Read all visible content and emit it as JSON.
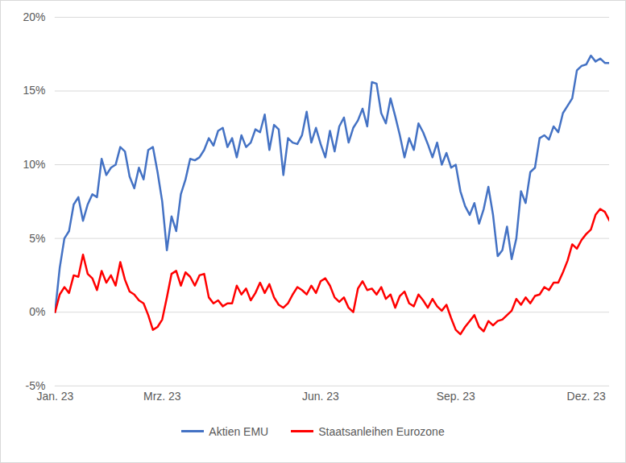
{
  "chart_data": {
    "type": "line",
    "categories": [
      "Jan. 23",
      null,
      null,
      null,
      null,
      null,
      null,
      null,
      null,
      null,
      null,
      null,
      null,
      null,
      null,
      null,
      null,
      null,
      null,
      null,
      null,
      null,
      null,
      "Mrz. 23",
      null,
      null,
      null,
      null,
      null,
      null,
      null,
      null,
      null,
      null,
      null,
      null,
      null,
      null,
      null,
      null,
      null,
      null,
      null,
      null,
      null,
      null,
      null,
      null,
      null,
      null,
      null,
      null,
      null,
      null,
      null,
      null,
      null,
      "Jun. 23",
      null,
      null,
      null,
      null,
      null,
      null,
      null,
      null,
      null,
      null,
      null,
      null,
      null,
      null,
      null,
      null,
      null,
      null,
      null,
      null,
      null,
      null,
      null,
      null,
      null,
      null,
      null,
      null,
      "Sep. 23",
      null,
      null,
      null,
      null,
      null,
      null,
      null,
      null,
      null,
      null,
      null,
      null,
      null,
      null,
      null,
      null,
      null,
      null,
      null,
      null,
      null,
      null,
      null,
      null,
      null,
      null,
      null,
      "Dez. 23",
      null,
      null,
      null,
      null,
      null
    ],
    "series": [
      {
        "name": "Aktien EMU",
        "color": "#4472c4",
        "values": [
          0,
          3,
          5,
          5.5,
          7.3,
          7.8,
          6.2,
          7.3,
          8,
          7.8,
          10.4,
          9.3,
          9.8,
          10,
          11.2,
          10.9,
          9.2,
          8.4,
          9.8,
          9.0,
          11.0,
          11.2,
          9.5,
          7.5,
          4.2,
          6.5,
          5.5,
          8,
          9,
          10.4,
          10.3,
          10.5,
          11,
          11.8,
          11.3,
          12.3,
          12.5,
          11.2,
          11.8,
          10.5,
          12,
          11.2,
          11.5,
          12.4,
          12.2,
          13.4,
          11,
          12.7,
          12.4,
          9.3,
          11.8,
          11.5,
          11.4,
          12,
          13.6,
          11.5,
          12.5,
          11.4,
          10.5,
          12.3,
          10.9,
          12.6,
          13.2,
          11.5,
          12.5,
          13,
          13.8,
          12.6,
          15.6,
          15.5,
          13.5,
          12.8,
          14.5,
          13.3,
          12,
          10.5,
          11.8,
          11,
          12.8,
          12.2,
          11.4,
          10.5,
          11.5,
          10,
          10.8,
          9.8,
          10,
          8.2,
          7.2,
          6.6,
          7.4,
          6,
          7,
          8.5,
          6.6,
          3.8,
          4.2,
          5.8,
          3.6,
          5,
          8.2,
          7.4,
          9.5,
          9.8,
          11.8,
          12,
          11.7,
          12.6,
          12.2,
          13.5,
          14,
          14.5,
          16.4,
          16.7,
          16.8,
          17.4,
          17,
          17.2,
          16.9,
          16.9
        ]
      },
      {
        "name": "Staatsanleihen Eurozone",
        "color": "#ff0000",
        "values": [
          0,
          1.2,
          1.7,
          1.3,
          2.5,
          2.4,
          3.9,
          2.6,
          2.3,
          1.5,
          2.8,
          2,
          2.5,
          1.8,
          3.4,
          2.2,
          1.4,
          1.2,
          0.8,
          0.6,
          -0.2,
          -1.2,
          -1.0,
          -0.5,
          1.0,
          2.6,
          2.8,
          1.8,
          2.7,
          2.4,
          1.8,
          2.5,
          2.6,
          1,
          0.6,
          0.8,
          0.4,
          0.6,
          0.6,
          1.8,
          1.2,
          1.6,
          0.8,
          1.3,
          2,
          1.3,
          1.9,
          1,
          0.5,
          0.3,
          0.6,
          1.2,
          1.7,
          1.5,
          1.2,
          1.8,
          1.3,
          2.1,
          2.3,
          1.8,
          1.0,
          0.7,
          1,
          0.3,
          0,
          1.6,
          2.1,
          1.5,
          1.6,
          1.2,
          1.7,
          0.9,
          1.2,
          0.3,
          1.1,
          1.4,
          0.6,
          0.4,
          1.2,
          0.8,
          0.3,
          0.9,
          0.4,
          0.1,
          0.5,
          -0.4,
          -1.2,
          -1.5,
          -1.0,
          -0.6,
          -0.2,
          -1.0,
          -1.3,
          -0.6,
          -0.9,
          -0.6,
          -0.5,
          -0.2,
          0.1,
          0.9,
          0.5,
          1.0,
          0.6,
          1.1,
          1.2,
          1.7,
          1.5,
          2.0,
          2.0,
          2.7,
          3.5,
          4.6,
          4.3,
          4.9,
          5.3,
          5.6,
          6.6,
          7.0,
          6.8,
          6.2
        ]
      }
    ],
    "ylim": [
      -5,
      20
    ],
    "yticks": [
      {
        "value": -5,
        "label": "-5%"
      },
      {
        "value": 0,
        "label": "0%"
      },
      {
        "value": 5,
        "label": "5%"
      },
      {
        "value": 10,
        "label": "10%"
      },
      {
        "value": 15,
        "label": "15%"
      },
      {
        "value": 20,
        "label": "20%"
      }
    ],
    "grid": true,
    "legend": "bottom"
  }
}
